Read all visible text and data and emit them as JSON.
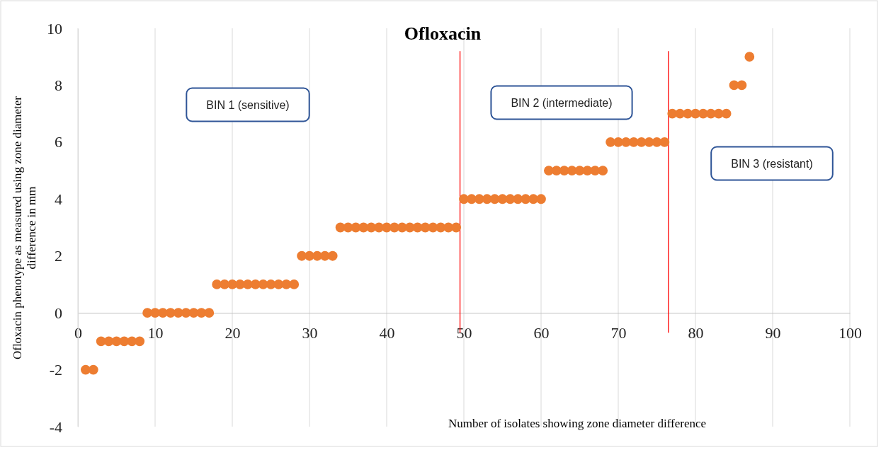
{
  "chart_data": {
    "type": "scatter",
    "title": "Ofloxacin",
    "xlabel": "Number of isolates showing zone diameter difference",
    "ylabel": "Ofloxacin phenotype as measured  using  zone diameter difference in mm",
    "x": [
      1,
      2,
      3,
      4,
      5,
      6,
      7,
      8,
      9,
      10,
      11,
      12,
      13,
      14,
      15,
      16,
      17,
      18,
      19,
      20,
      21,
      22,
      23,
      24,
      25,
      26,
      27,
      28,
      29,
      30,
      31,
      32,
      33,
      34,
      35,
      36,
      37,
      38,
      39,
      40,
      41,
      42,
      43,
      44,
      45,
      46,
      47,
      48,
      49,
      50,
      51,
      52,
      53,
      54,
      55,
      56,
      57,
      58,
      59,
      60,
      61,
      62,
      63,
      64,
      65,
      66,
      67,
      68,
      69,
      70,
      71,
      72,
      73,
      74,
      75,
      76,
      77,
      78,
      79,
      80,
      81,
      82,
      83,
      84,
      85,
      86,
      87
    ],
    "series": [
      {
        "color": "#ed7d31",
        "values": [
          -2,
          -2,
          -1,
          -1,
          -1,
          -1,
          -1,
          -1,
          0,
          0,
          0,
          0,
          0,
          0,
          0,
          0,
          0,
          1,
          1,
          1,
          1,
          1,
          1,
          1,
          1,
          1,
          1,
          1,
          2,
          2,
          2,
          2,
          2,
          3,
          3,
          3,
          3,
          3,
          3,
          3,
          3,
          3,
          3,
          3,
          3,
          3,
          3,
          3,
          3,
          4,
          4,
          4,
          4,
          4,
          4,
          4,
          4,
          4,
          4,
          4,
          5,
          5,
          5,
          5,
          5,
          5,
          5,
          5,
          6,
          6,
          6,
          6,
          6,
          6,
          6,
          6,
          7,
          7,
          7,
          7,
          7,
          7,
          7,
          7,
          8,
          8,
          9
        ]
      }
    ],
    "xlim": [
      0,
      100
    ],
    "xticks": [
      0,
      10,
      20,
      30,
      40,
      50,
      60,
      70,
      80,
      90,
      100
    ],
    "ylim": [
      -4,
      10
    ],
    "yticks": [
      -4,
      -2,
      0,
      2,
      4,
      6,
      8,
      10
    ],
    "grid": "x",
    "marker": "circle",
    "ref_lines": [
      {
        "axis": "x",
        "value": 49.5,
        "color": "#ff0000"
      },
      {
        "axis": "x",
        "value": 76.5,
        "color": "#ff0000"
      }
    ],
    "annotations": [
      "BIN 1 (sensitive)",
      "BIN 2 (intermediate)",
      "BIN 3 (resistant)"
    ]
  }
}
